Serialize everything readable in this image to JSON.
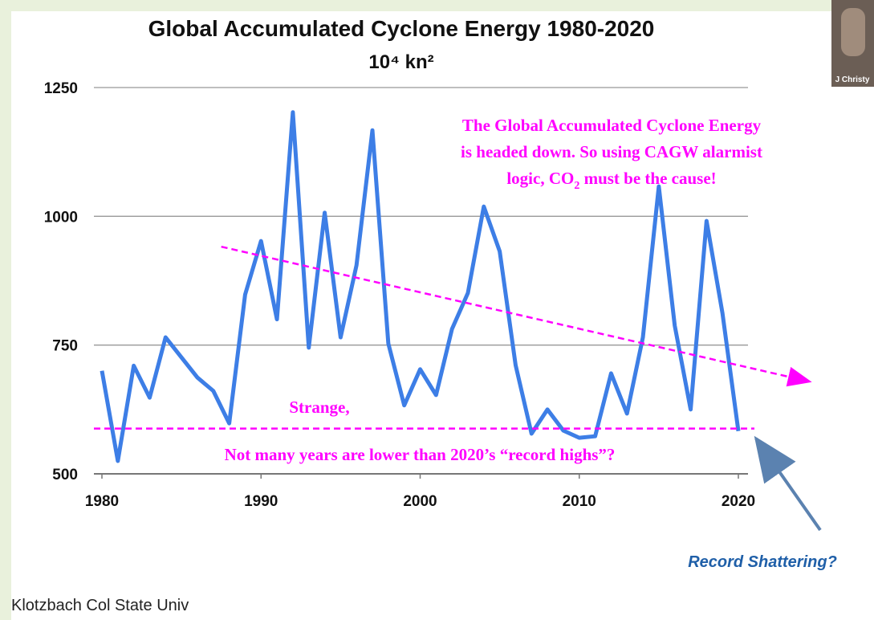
{
  "chart_data": {
    "type": "line",
    "title": "Global Accumulated Cyclone Energy 1980-2020",
    "subtitle": "10⁴ kn²",
    "x": [
      1980,
      1981,
      1982,
      1983,
      1984,
      1985,
      1986,
      1987,
      1988,
      1989,
      1990,
      1991,
      1992,
      1993,
      1994,
      1995,
      1996,
      1997,
      1998,
      1999,
      2000,
      2001,
      2002,
      2003,
      2004,
      2005,
      2006,
      2007,
      2008,
      2009,
      2010,
      2011,
      2012,
      2013,
      2014,
      2015,
      2016,
      2017,
      2018,
      2019,
      2020
    ],
    "series": [
      {
        "name": "Global ACE",
        "color": "#3d7ee6",
        "values": [
          700,
          525,
          710,
          648,
          765,
          726,
          687,
          661,
          598,
          848,
          952,
          800,
          1202,
          745,
          1007,
          765,
          905,
          1167,
          753,
          633,
          703,
          653,
          781,
          851,
          1019,
          932,
          711,
          578,
          625,
          584,
          570,
          573,
          695,
          617,
          765,
          1058,
          788,
          625,
          991,
          812,
          583
        ]
      }
    ],
    "xlim": [
      1980,
      2020
    ],
    "xticks": [
      1980,
      1990,
      2000,
      2010,
      2020
    ],
    "ylim": [
      500,
      1250
    ],
    "yticks": [
      500,
      750,
      1000,
      1250
    ],
    "grid": true,
    "trend": {
      "x": [
        1987.5,
        2024.5
      ],
      "y": [
        941,
        679
      ],
      "color": "#ff00ff"
    },
    "threshold": {
      "value": 588,
      "color": "#ff00ff"
    },
    "annotations": {
      "main": [
        "The Global Accumulated Cyclone Energy",
        "is headed down. So using CAGW alarmist",
        "logic, CO",
        "2",
        " must be the cause!"
      ],
      "strange": "Strange,",
      "lower": "Not many years are lower than 2020’s “record highs”?",
      "record": "Record Shattering?"
    },
    "source": "Klotzbach Col State Univ",
    "webcam_label": "J Christy"
  }
}
